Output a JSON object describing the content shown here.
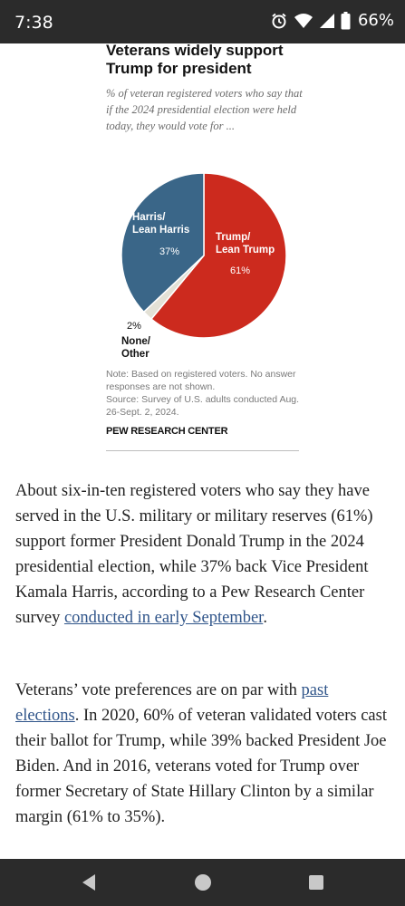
{
  "status_bar": {
    "time": "7:38",
    "battery": "66%",
    "icons": [
      "alarm-icon",
      "wifi-icon",
      "signal-icon",
      "battery-icon"
    ]
  },
  "chart": {
    "title_line1": "Veterans widely support",
    "title_line2": "Trump for president",
    "subtitle": "% of veteran registered voters who say that if the 2024 presidential election were held today, they would vote for ...",
    "note": "Note: Based on registered voters. No answer responses are not shown.",
    "source": "Source: Survey of U.S. adults conducted Aug. 26-Sept. 2, 2024.",
    "brand": "PEW RESEARCH CENTER"
  },
  "chart_data": {
    "type": "pie",
    "slices": [
      {
        "label_line1": "Trump/",
        "label_line2": "Lean Trump",
        "value": 61,
        "value_label": "61%",
        "color": "#cc2a1e"
      },
      {
        "label_line1": "None/",
        "label_line2": "Other",
        "value": 2,
        "value_label": "2%",
        "color": "#e3e1d6"
      },
      {
        "label_line1": "Harris/",
        "label_line2": "Lean Harris",
        "value": 37,
        "value_label": "37%",
        "color": "#3a6688"
      }
    ]
  },
  "article": {
    "p1_text": "About six-in-ten registered voters who say they have served in the U.S. military or military reserves (61%) support former President Donald Trump in the 2024 presidential election, while 37% back Vice President Kamala Harris, according to a Pew Research Center survey ",
    "p1_link": "conducted in early September",
    "p1_end": ".",
    "p2_text": "Veterans’ vote preferences are on par with ",
    "p2_link": "past elections",
    "p2_rest": ". In 2020, 60% of veteran validated voters cast their ballot for Trump, while 39% backed President Joe Biden. And in 2016, veterans voted for Trump over former Secretary of State Hillary Clinton by a similar margin (61% to 35%)."
  },
  "nav_bar": {
    "buttons": [
      "back-icon",
      "home-icon",
      "recents-icon"
    ]
  }
}
